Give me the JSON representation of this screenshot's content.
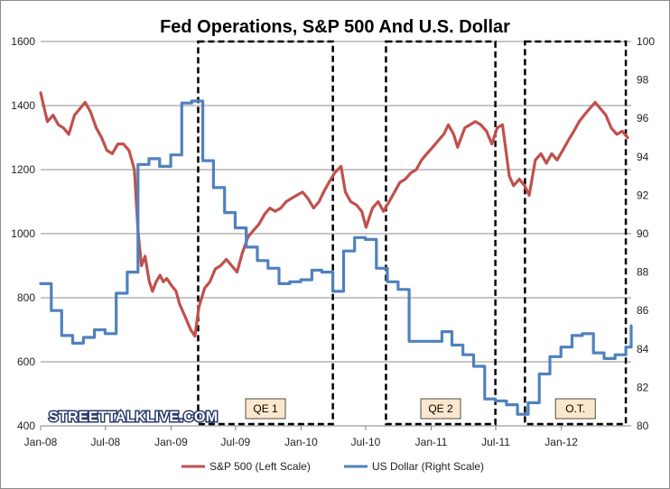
{
  "chart_data": {
    "type": "line",
    "title": "Fed Operations, S&P 500 And U.S. Dollar",
    "watermark": "STREETTALKLIVE.COM",
    "x_tick_labels": [
      "Jan-08",
      "Jul-08",
      "Jan-09",
      "Jul-09",
      "Jan-10",
      "Jul-10",
      "Jan-11",
      "Jul-11",
      "Jan-12"
    ],
    "x_tick_dates": [
      "2008-01-01",
      "2008-07-01",
      "2009-01-01",
      "2009-07-01",
      "2010-01-01",
      "2010-07-01",
      "2011-01-01",
      "2011-07-01",
      "2012-01-01"
    ],
    "x_range": [
      "2008-01-01",
      "2012-07-15"
    ],
    "y_left": {
      "ticks": [
        400,
        600,
        800,
        1000,
        1200,
        1400,
        1600
      ],
      "ylim": [
        400,
        1600
      ]
    },
    "y_right": {
      "ticks": [
        80,
        82,
        84,
        86,
        88,
        90,
        92,
        94,
        96,
        98,
        100
      ],
      "ylim": [
        80,
        100
      ]
    },
    "grid": "horizontal",
    "legend_position": "bottom",
    "series": [
      {
        "name": "S&P 500 (Left Scale)",
        "axis": "left",
        "color": "#c0504d",
        "x": [
          "2008-01-01",
          "2008-01-20",
          "2008-02-05",
          "2008-02-20",
          "2008-03-05",
          "2008-03-20",
          "2008-04-05",
          "2008-04-20",
          "2008-05-05",
          "2008-05-20",
          "2008-06-05",
          "2008-06-20",
          "2008-07-05",
          "2008-07-20",
          "2008-08-05",
          "2008-08-20",
          "2008-09-05",
          "2008-09-20",
          "2008-10-01",
          "2008-10-10",
          "2008-10-20",
          "2008-11-01",
          "2008-11-10",
          "2008-11-20",
          "2008-12-01",
          "2008-12-10",
          "2008-12-20",
          "2009-01-01",
          "2009-01-15",
          "2009-01-25",
          "2009-02-10",
          "2009-02-25",
          "2009-03-09",
          "2009-03-20",
          "2009-04-05",
          "2009-04-20",
          "2009-05-05",
          "2009-05-20",
          "2009-06-05",
          "2009-06-20",
          "2009-07-05",
          "2009-07-20",
          "2009-08-05",
          "2009-08-20",
          "2009-09-05",
          "2009-09-20",
          "2009-10-05",
          "2009-10-20",
          "2009-11-05",
          "2009-11-20",
          "2009-12-05",
          "2009-12-20",
          "2010-01-05",
          "2010-01-20",
          "2010-02-05",
          "2010-02-20",
          "2010-03-05",
          "2010-03-20",
          "2010-04-05",
          "2010-04-23",
          "2010-05-05",
          "2010-05-20",
          "2010-06-05",
          "2010-06-20",
          "2010-07-02",
          "2010-07-20",
          "2010-08-05",
          "2010-08-20",
          "2010-09-05",
          "2010-09-20",
          "2010-10-05",
          "2010-10-20",
          "2010-11-05",
          "2010-11-20",
          "2010-12-05",
          "2010-12-20",
          "2011-01-05",
          "2011-01-20",
          "2011-02-05",
          "2011-02-18",
          "2011-03-05",
          "2011-03-16",
          "2011-04-05",
          "2011-04-20",
          "2011-05-05",
          "2011-05-20",
          "2011-06-05",
          "2011-06-20",
          "2011-07-05",
          "2011-07-20",
          "2011-08-08",
          "2011-08-20",
          "2011-09-05",
          "2011-09-20",
          "2011-10-03",
          "2011-10-20",
          "2011-11-05",
          "2011-11-20",
          "2011-12-05",
          "2011-12-20",
          "2012-01-05",
          "2012-01-20",
          "2012-02-05",
          "2012-02-20",
          "2012-03-05",
          "2012-03-20",
          "2012-04-05",
          "2012-04-20",
          "2012-05-05",
          "2012-05-20",
          "2012-06-05",
          "2012-06-20",
          "2012-07-05"
        ],
        "values": [
          1440,
          1350,
          1370,
          1340,
          1330,
          1310,
          1370,
          1390,
          1410,
          1380,
          1330,
          1300,
          1260,
          1250,
          1280,
          1280,
          1260,
          1200,
          1000,
          900,
          930,
          850,
          820,
          850,
          870,
          850,
          860,
          840,
          820,
          780,
          740,
          700,
          680,
          770,
          830,
          850,
          890,
          900,
          920,
          900,
          880,
          940,
          990,
          1010,
          1030,
          1060,
          1080,
          1070,
          1080,
          1100,
          1110,
          1120,
          1130,
          1110,
          1080,
          1100,
          1130,
          1160,
          1190,
          1210,
          1130,
          1100,
          1090,
          1070,
          1020,
          1080,
          1100,
          1070,
          1100,
          1130,
          1160,
          1170,
          1190,
          1200,
          1230,
          1250,
          1270,
          1290,
          1310,
          1340,
          1310,
          1270,
          1330,
          1340,
          1350,
          1340,
          1320,
          1280,
          1330,
          1340,
          1180,
          1150,
          1170,
          1150,
          1120,
          1230,
          1250,
          1220,
          1250,
          1230,
          1260,
          1290,
          1320,
          1350,
          1370,
          1390,
          1410,
          1390,
          1370,
          1330,
          1310,
          1320,
          1300
        ]
      },
      {
        "name": "US Dollar (Right Scale)",
        "axis": "right",
        "color": "#4f81bd",
        "x": [
          "2008-01-01",
          "2008-01-31",
          "2008-02-29",
          "2008-03-31",
          "2008-04-30",
          "2008-05-31",
          "2008-06-30",
          "2008-07-31",
          "2008-08-31",
          "2008-09-30",
          "2008-10-31",
          "2008-11-30",
          "2008-12-31",
          "2009-01-31",
          "2009-02-28",
          "2009-03-31",
          "2009-04-30",
          "2009-05-31",
          "2009-06-30",
          "2009-07-31",
          "2009-08-31",
          "2009-09-30",
          "2009-10-31",
          "2009-11-30",
          "2009-12-31",
          "2010-01-31",
          "2010-02-28",
          "2010-03-31",
          "2010-04-30",
          "2010-05-31",
          "2010-06-30",
          "2010-07-31",
          "2010-08-31",
          "2010-09-30",
          "2010-10-31",
          "2010-11-30",
          "2010-12-31",
          "2011-01-31",
          "2011-02-28",
          "2011-03-31",
          "2011-04-30",
          "2011-05-31",
          "2011-06-30",
          "2011-07-31",
          "2011-08-31",
          "2011-09-30",
          "2011-10-31",
          "2011-11-30",
          "2011-12-31",
          "2012-01-31",
          "2012-02-29",
          "2012-03-31",
          "2012-04-30",
          "2012-05-31",
          "2012-06-30",
          "2012-07-15"
        ],
        "values": [
          87.4,
          86.0,
          84.7,
          84.3,
          84.6,
          85.0,
          84.8,
          86.9,
          88.0,
          93.6,
          93.9,
          93.5,
          94.1,
          96.8,
          96.9,
          93.8,
          92.4,
          91.1,
          90.3,
          89.3,
          88.6,
          88.2,
          87.4,
          87.5,
          87.6,
          88.1,
          88.0,
          87.0,
          89.1,
          89.8,
          89.7,
          88.2,
          87.5,
          87.1,
          84.4,
          84.4,
          84.4,
          84.9,
          84.2,
          83.7,
          83.1,
          81.4,
          81.3,
          81.1,
          80.6,
          81.2,
          82.7,
          83.6,
          84.1,
          84.7,
          84.8,
          83.8,
          83.5,
          83.7,
          84.1,
          85.2
        ]
      }
    ],
    "annotations": [
      {
        "label": "QE 1",
        "x_start": "2009-03-18",
        "x_end": "2010-03-31"
      },
      {
        "label": "QE 2",
        "x_start": "2010-08-27",
        "x_end": "2011-06-30"
      },
      {
        "label": "O.T.",
        "x_start": "2011-09-21",
        "x_end": "2012-06-30"
      }
    ]
  }
}
